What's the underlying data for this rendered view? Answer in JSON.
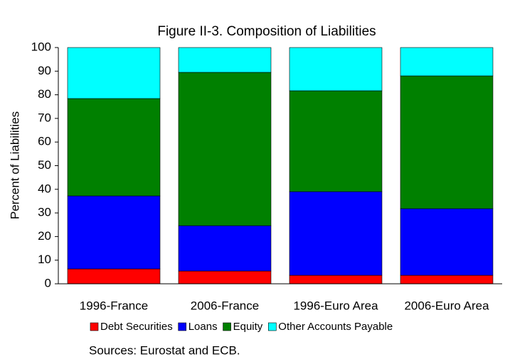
{
  "chart_data": {
    "type": "stacked_bar",
    "title": "Figure II-3. Composition of Liabilities",
    "y_label": "Percent of Liabilities",
    "categories": [
      "1996-France",
      "2006-France",
      "1996-Euro Area",
      "2006-Euro Area"
    ],
    "series": [
      {
        "name": "Debt Securities",
        "color": "#ff0000",
        "values": [
          6.3,
          5.4,
          3.6,
          3.6
        ]
      },
      {
        "name": "Loans",
        "color": "#0000ff",
        "values": [
          30.9,
          19.2,
          35.4,
          28.2
        ]
      },
      {
        "name": "Equity",
        "color": "#008000",
        "values": [
          41.2,
          64.9,
          42.7,
          56.2
        ]
      },
      {
        "name": "Other Accounts Payable",
        "color": "#00ffff",
        "values": [
          21.6,
          10.5,
          18.3,
          12.0
        ]
      }
    ],
    "ylim": [
      0,
      100
    ],
    "yticks": [
      0,
      10,
      20,
      30,
      40,
      50,
      60,
      70,
      80,
      90,
      100
    ],
    "grid": false,
    "legend": "bottom",
    "source": "Sources: Eurostat and ECB."
  }
}
